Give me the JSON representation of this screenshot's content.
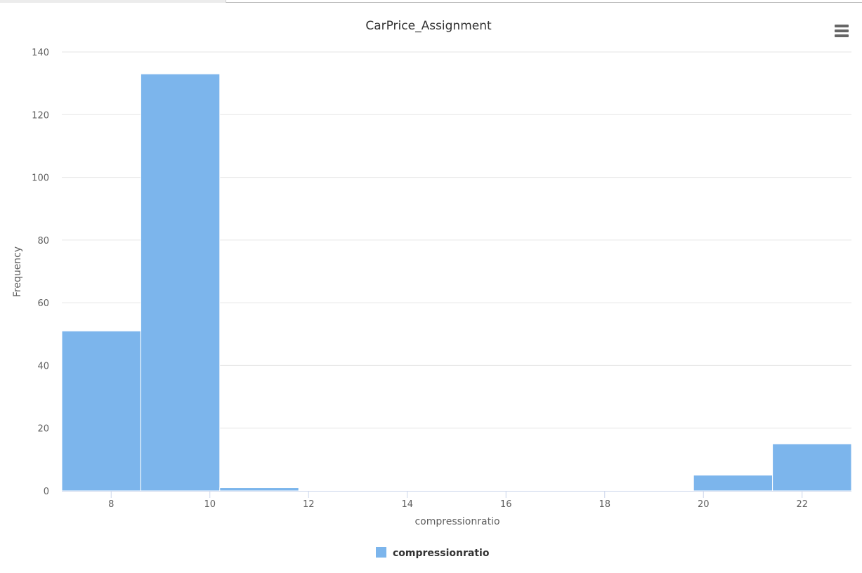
{
  "chart_data": {
    "type": "bar",
    "title": "CarPrice_Assignment",
    "xlabel": "compressionratio",
    "ylabel": "Frequency",
    "xlim": [
      7,
      23
    ],
    "ylim": [
      0,
      140
    ],
    "x_ticks": [
      "8",
      "10",
      "12",
      "14",
      "16",
      "18",
      "20",
      "22"
    ],
    "y_ticks": [
      "0",
      "20",
      "40",
      "60",
      "80",
      "100",
      "120",
      "140"
    ],
    "bins": [
      {
        "from": 7.0,
        "to": 8.6,
        "value": 51
      },
      {
        "from": 8.6,
        "to": 10.2,
        "value": 133
      },
      {
        "from": 10.2,
        "to": 11.8,
        "value": 1
      },
      {
        "from": 11.8,
        "to": 13.4,
        "value": 0
      },
      {
        "from": 13.4,
        "to": 15.0,
        "value": 0
      },
      {
        "from": 15.0,
        "to": 16.6,
        "value": 0
      },
      {
        "from": 16.6,
        "to": 18.2,
        "value": 0
      },
      {
        "from": 18.2,
        "to": 19.8,
        "value": 0
      },
      {
        "from": 19.8,
        "to": 21.4,
        "value": 5
      },
      {
        "from": 21.4,
        "to": 23.0,
        "value": 15
      }
    ],
    "series": [
      {
        "name": "compressionratio",
        "color": "#7cb5ec"
      }
    ],
    "grid": true,
    "legend_position": "bottom-center"
  },
  "menu": {
    "icon": "hamburger-menu-icon"
  }
}
